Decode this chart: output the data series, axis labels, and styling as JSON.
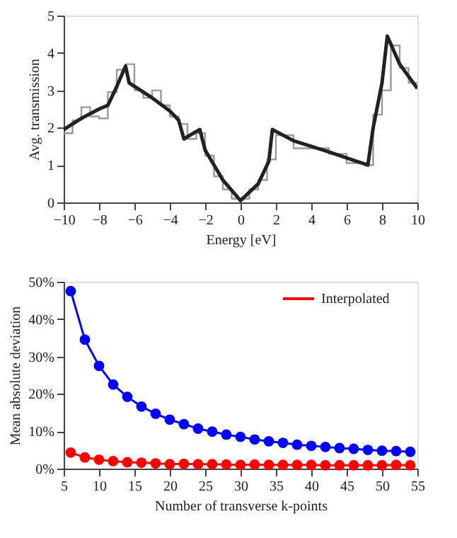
{
  "chart_data": [
    {
      "type": "line",
      "xlabel": "Energy [eV]",
      "ylabel": "Avg. transmission",
      "xlim": [
        -10,
        10
      ],
      "ylim": [
        0,
        5
      ],
      "xticks": [
        {
          "value": -10,
          "label": "−10"
        },
        {
          "value": -8,
          "label": "−8"
        },
        {
          "value": -6,
          "label": "−6"
        },
        {
          "value": -4,
          "label": "−4"
        },
        {
          "value": -2,
          "label": "−2"
        },
        0,
        2,
        4,
        6,
        8,
        10
      ],
      "yticks": [
        0,
        1,
        2,
        3,
        4,
        5
      ],
      "grid": false,
      "marker": "none",
      "line_style": "solid",
      "series": [
        {
          "type": "step",
          "color": "#9a9a9a",
          "x": [
            -10,
            -9.5,
            -9,
            -8.5,
            -8,
            -7.5,
            -7,
            -6.5,
            -6,
            -5.5,
            -5,
            -4.5,
            -4,
            -3.5,
            -3,
            -2.5,
            -2,
            -1.5,
            -1,
            -0.5,
            0.5,
            1,
            1.5,
            2,
            3,
            4,
            5,
            6,
            7,
            7.5,
            8,
            8.5,
            9,
            9.5,
            10
          ],
          "values": [
            1.85,
            2.2,
            2.55,
            2.3,
            2.25,
            2.95,
            3.55,
            3.7,
            3.0,
            2.8,
            3.0,
            2.6,
            2.3,
            2.1,
            1.7,
            1.85,
            1.25,
            0.7,
            0.35,
            0.1,
            0.35,
            0.6,
            1.15,
            1.8,
            1.45,
            1.45,
            1.3,
            1.05,
            1.0,
            2.35,
            3.0,
            4.2,
            3.6,
            3.2,
            3.2
          ]
        },
        {
          "type": "line",
          "color": "#222222",
          "x": [
            -10,
            -9,
            -8,
            -7.5,
            -7,
            -6.5,
            -6.3,
            -5,
            -4,
            -3.5,
            -3.2,
            -2.5,
            -2.3,
            -2,
            -1,
            0,
            1,
            1.6,
            1.8,
            3,
            5,
            7.2,
            7.5,
            8,
            8.3,
            9,
            10
          ],
          "values": [
            1.95,
            2.25,
            2.5,
            2.6,
            3.1,
            3.65,
            3.2,
            2.8,
            2.45,
            2.2,
            1.7,
            1.9,
            1.95,
            1.4,
            0.6,
            0.05,
            0.5,
            1.1,
            1.95,
            1.65,
            1.35,
            1.0,
            2.0,
            3.2,
            4.45,
            3.7,
            3.05
          ]
        }
      ]
    },
    {
      "type": "line",
      "xlabel": "Number of transverse k-points",
      "ylabel": "Mean absolute deviation",
      "xlim": [
        5,
        55
      ],
      "ylim": [
        0,
        50
      ],
      "xticks": [
        5,
        10,
        15,
        20,
        25,
        30,
        35,
        40,
        45,
        50,
        55
      ],
      "yticks": [
        {
          "value": 0,
          "label": "0%"
        },
        {
          "value": 10,
          "label": "10%"
        },
        {
          "value": 20,
          "label": "20%"
        },
        {
          "value": 30,
          "label": "30%"
        },
        {
          "value": 40,
          "label": "40%"
        },
        {
          "value": 50,
          "label": "50%"
        }
      ],
      "grid": false,
      "marker": "circle",
      "line_style": "solid",
      "legend": "top right",
      "x": [
        6,
        8,
        10,
        12,
        14,
        16,
        18,
        20,
        22,
        24,
        26,
        28,
        30,
        32,
        34,
        36,
        38,
        40,
        42,
        44,
        46,
        48,
        50,
        52,
        54
      ],
      "series": [
        {
          "color": "#0000ff",
          "values": [
            47.5,
            34.5,
            27.5,
            22.5,
            19.2,
            16.6,
            14.7,
            13.1,
            11.9,
            10.7,
            9.9,
            9.1,
            8.5,
            7.8,
            7.3,
            6.9,
            6.4,
            6.1,
            5.8,
            5.5,
            5.3,
            5.0,
            4.8,
            4.7,
            4.5
          ]
        },
        {
          "name": "Interpolated",
          "color": "#ff0000",
          "values": [
            4.3,
            3.0,
            2.4,
            2.0,
            1.7,
            1.6,
            1.4,
            1.2,
            1.3,
            1.2,
            1.2,
            1.1,
            1.0,
            1.1,
            1.0,
            1.0,
            1.0,
            1.0,
            0.9,
            0.9,
            0.9,
            0.9,
            0.9,
            1.0,
            0.9
          ]
        }
      ]
    }
  ]
}
